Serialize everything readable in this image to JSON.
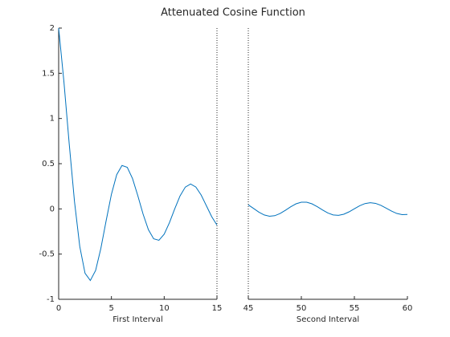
{
  "chart_data": [
    {
      "type": "line",
      "title": "Attenuated Cosine Function",
      "xlabel": "First Interval",
      "color": "#0072bd",
      "xlim": [
        0,
        15
      ],
      "xticks": [
        0,
        5,
        10,
        15
      ],
      "ylim": [
        -1,
        2
      ],
      "yticks": [
        -1,
        -0.5,
        0,
        0.5,
        1,
        1.5,
        2
      ],
      "x": [
        0,
        0.5,
        1,
        1.5,
        2,
        2.5,
        3,
        3.5,
        4,
        4.5,
        5,
        5.5,
        6,
        6.5,
        7,
        7.5,
        8,
        8.5,
        9,
        9.5,
        10,
        10.5,
        11,
        11.5,
        12,
        12.5,
        13,
        13.5,
        14,
        14.5,
        15
      ],
      "values": [
        2,
        1.404,
        0.72,
        0.081,
        -0.416,
        -0.712,
        -0.792,
        -0.681,
        -0.436,
        -0.13,
        0.162,
        0.378,
        0.48,
        0.46,
        0.335,
        0.146,
        -0.058,
        -0.229,
        -0.331,
        -0.347,
        -0.28,
        -0.152,
        0.001,
        0.143,
        0.241,
        0.275,
        0.242,
        0.154,
        0.034,
        -0.086,
        -0.179
      ]
    },
    {
      "type": "line",
      "xlabel": "Second Interval",
      "color": "#0072bd",
      "xlim": [
        45,
        60
      ],
      "xticks": [
        45,
        50,
        55,
        60
      ],
      "ylim": [
        -1,
        2
      ],
      "x": [
        45,
        45.5,
        46,
        46.5,
        47,
        47.5,
        48,
        48.5,
        49,
        49.5,
        50,
        50.5,
        51,
        51.5,
        52,
        52.5,
        53,
        53.5,
        54,
        54.5,
        55,
        55.5,
        56,
        56.5,
        57,
        57.5,
        58,
        58.5,
        59,
        59.5,
        60
      ],
      "values": [
        0.0447,
        0.0044,
        -0.036,
        -0.067,
        -0.081,
        -0.0751,
        -0.0512,
        -0.0153,
        0.0236,
        0.056,
        0.0742,
        0.0741,
        0.056,
        0.0247,
        -0.0121,
        -0.0452,
        -0.0668,
        -0.0717,
        -0.0592,
        -0.0326,
        0.0016,
        0.0348,
        0.0588,
        0.0683,
        0.061,
        0.039,
        0.0079,
        -0.0246,
        -0.0506,
        -0.0639,
        -0.0614
      ]
    }
  ]
}
